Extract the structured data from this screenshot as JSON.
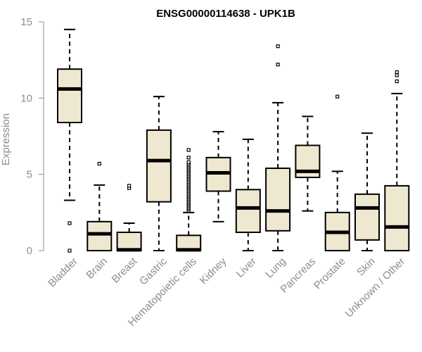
{
  "chart_data": {
    "type": "box",
    "title": "ENSG00000114638 - UPK1B",
    "xlabel": "",
    "ylabel": "Expression",
    "ylim": [
      0,
      15
    ],
    "yticks": [
      0,
      5,
      10,
      15
    ],
    "grid": false,
    "box_fill": "#efe8d0",
    "categories": [
      "Bladder",
      "Brain",
      "Breast",
      "Gastric",
      "Hematopoietic cells",
      "Kidney",
      "Liver",
      "Lung",
      "Pancreas",
      "Prostate",
      "Skin",
      "Unknown / Other"
    ],
    "boxes": [
      {
        "label": "Bladder",
        "whisker_low": 3.3,
        "q1": 8.4,
        "median": 10.6,
        "q3": 11.9,
        "whisker_high": 14.5,
        "outliers": [
          1.8,
          0.0
        ]
      },
      {
        "label": "Brain",
        "whisker_low": 0.0,
        "q1": 0.0,
        "median": 1.1,
        "q3": 1.9,
        "whisker_high": 4.3,
        "outliers": [
          5.7
        ]
      },
      {
        "label": "Breast",
        "whisker_low": 0.0,
        "q1": 0.0,
        "median": 0.05,
        "q3": 1.2,
        "whisker_high": 1.8,
        "outliers": [
          4.1,
          4.25
        ]
      },
      {
        "label": "Gastric",
        "whisker_low": 0.0,
        "q1": 3.2,
        "median": 5.9,
        "q3": 7.9,
        "whisker_high": 10.1,
        "outliers": []
      },
      {
        "label": "Hematopoietic cells",
        "whisker_low": 0.0,
        "q1": 0.0,
        "median": 0.05,
        "q3": 1.0,
        "whisker_high": 2.5,
        "outliers": [
          2.6,
          2.7,
          2.8,
          2.9,
          3.0,
          3.1,
          3.2,
          3.3,
          3.4,
          3.5,
          3.6,
          3.7,
          3.8,
          3.9,
          4.0,
          4.1,
          4.2,
          4.3,
          4.4,
          4.5,
          4.6,
          4.7,
          4.8,
          4.9,
          5.0,
          5.1,
          5.2,
          5.3,
          5.4,
          5.5,
          5.6,
          5.7,
          5.8,
          6.1,
          6.6
        ]
      },
      {
        "label": "Kidney",
        "whisker_low": 1.9,
        "q1": 3.9,
        "median": 5.1,
        "q3": 6.1,
        "whisker_high": 7.8,
        "outliers": []
      },
      {
        "label": "Liver",
        "whisker_low": 0.0,
        "q1": 1.2,
        "median": 2.8,
        "q3": 4.0,
        "whisker_high": 7.3,
        "outliers": []
      },
      {
        "label": "Lung",
        "whisker_low": 0.0,
        "q1": 1.3,
        "median": 2.6,
        "q3": 5.4,
        "whisker_high": 9.7,
        "outliers": [
          12.2,
          13.4
        ]
      },
      {
        "label": "Pancreas",
        "whisker_low": 2.6,
        "q1": 4.8,
        "median": 5.2,
        "q3": 6.9,
        "whisker_high": 8.8,
        "outliers": []
      },
      {
        "label": "Prostate",
        "whisker_low": 0.0,
        "q1": 0.0,
        "median": 1.2,
        "q3": 2.5,
        "whisker_high": 5.2,
        "outliers": [
          10.1
        ]
      },
      {
        "label": "Skin",
        "whisker_low": 0.0,
        "q1": 0.7,
        "median": 2.8,
        "q3": 3.7,
        "whisker_high": 7.7,
        "outliers": []
      },
      {
        "label": "Unknown / Other",
        "whisker_low": 0.0,
        "q1": 0.0,
        "median": 1.55,
        "q3": 4.25,
        "whisker_high": 10.3,
        "outliers": [
          11.1,
          11.5,
          11.7
        ]
      }
    ]
  }
}
